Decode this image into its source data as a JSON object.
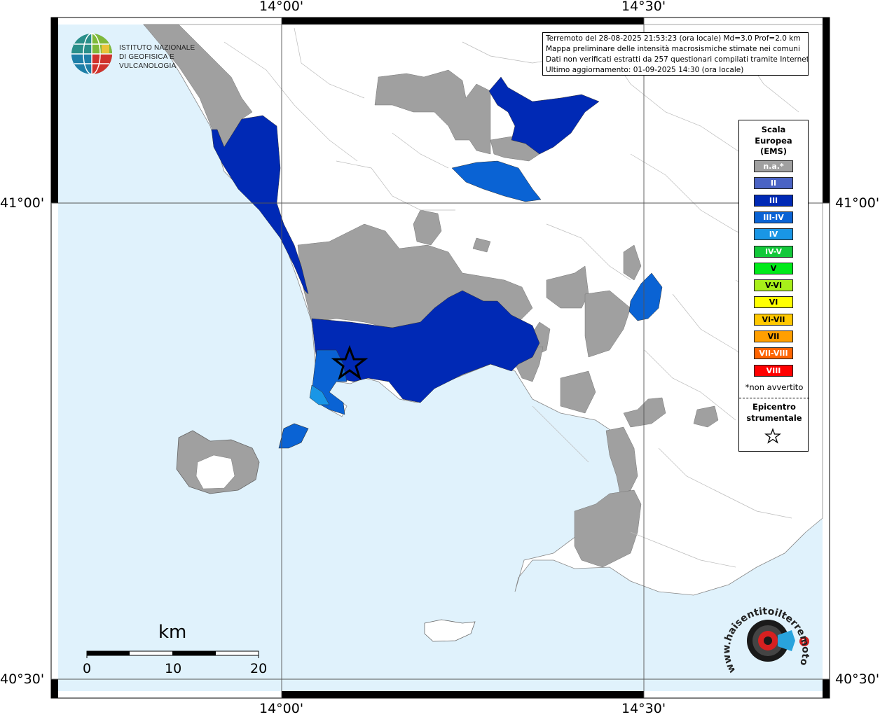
{
  "map": {
    "coords": {
      "top_left": "14°00'",
      "top_right": "14°30'",
      "bottom_left": "14°00'",
      "bottom_right": "14°30'",
      "left_upper": "41°00'",
      "right_upper": "41°00'",
      "left_lower": "40°30'",
      "right_lower": "40°30'"
    },
    "colors": {
      "sea": "#e0f2fc",
      "land": "#ffffff",
      "na": "#a0a0a0",
      "ems_iii": "#0029b5",
      "ems_iii_iv": "#0a63d4",
      "ems_iv": "#1996e6"
    }
  },
  "ingv": {
    "line1": "ISTITUTO NAZIONALE",
    "line2": "DI GEOFISICA E VULCANOLOGIA"
  },
  "info": {
    "line1": "Terremoto del 28-08-2025 21:53:23 (ora locale) Md=3.0 Prof=2.0 km",
    "line2": "Mappa preliminare delle intensità macrosismiche stimate nei comuni",
    "line3": "Dati non verificati estratti da 257 questionari compilati tramite Internet.",
    "line4": "Ultimo aggiornamento: 01-09-2025 14:30 (ora locale)"
  },
  "legend": {
    "title1": "Scala",
    "title2": "Europea",
    "title3": "(EMS)",
    "items": [
      {
        "label": "n.a.*",
        "color": "#a0a0a0",
        "text_color": "#ffffff"
      },
      {
        "label": "II",
        "color": "#4a63c4",
        "text_color": "#ffffff"
      },
      {
        "label": "III",
        "color": "#0029b5",
        "text_color": "#ffffff"
      },
      {
        "label": "III-IV",
        "color": "#0a63d4",
        "text_color": "#ffffff"
      },
      {
        "label": "IV",
        "color": "#1996e6",
        "text_color": "#ffffff"
      },
      {
        "label": "IV-V",
        "color": "#12c83a",
        "text_color": "#ffffff"
      },
      {
        "label": "V",
        "color": "#00ea1a",
        "text_color": "#000000"
      },
      {
        "label": "V-VI",
        "color": "#a8ef1a",
        "text_color": "#000000"
      },
      {
        "label": "VI",
        "color": "#ffff00",
        "text_color": "#000000"
      },
      {
        "label": "VI-VII",
        "color": "#ffc800",
        "text_color": "#000000"
      },
      {
        "label": "VII",
        "color": "#ff9f00",
        "text_color": "#000000"
      },
      {
        "label": "VII-VIII",
        "color": "#ff6400",
        "text_color": "#ffffff"
      },
      {
        "label": "VIII",
        "color": "#ff0000",
        "text_color": "#ffffff"
      }
    ],
    "note": "*non avvertito",
    "epi1": "Epicentro",
    "epi2": "strumentale"
  },
  "scale": {
    "unit": "km",
    "ticks": [
      "0",
      "10",
      "20"
    ]
  },
  "hst": {
    "text": "www.haisentitoilterremoto.it"
  }
}
